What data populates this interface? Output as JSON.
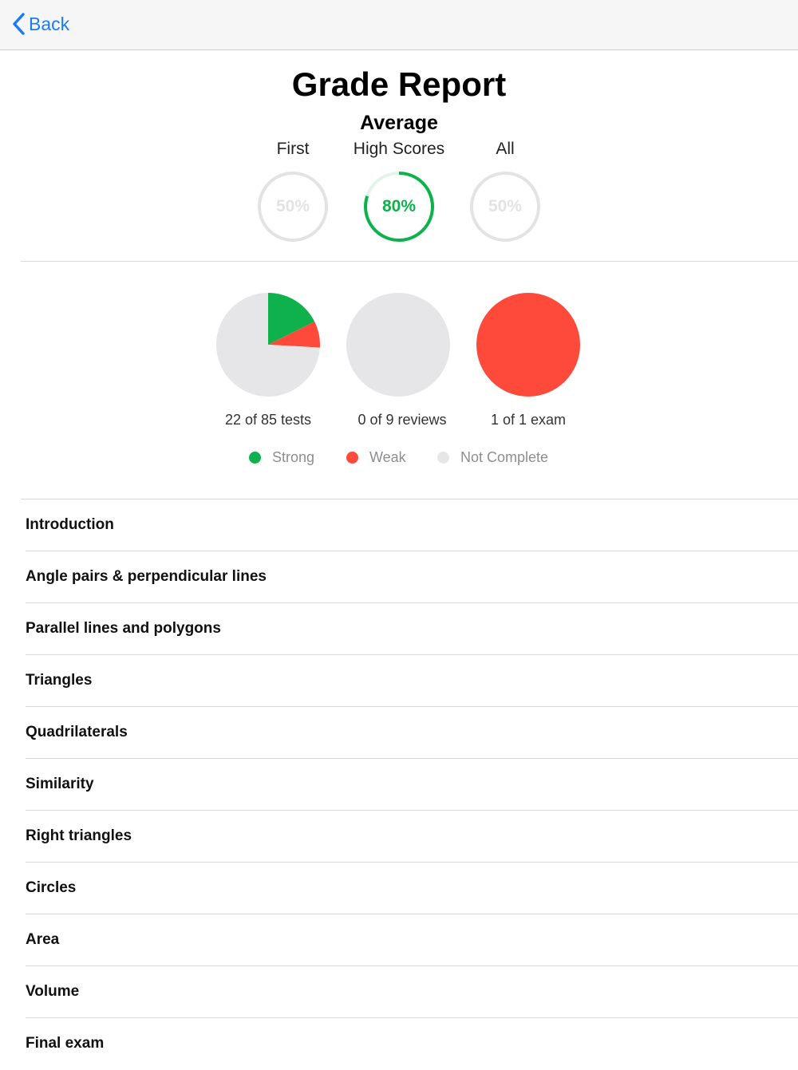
{
  "nav": {
    "back_label": "Back"
  },
  "header": {
    "title": "Grade Report",
    "subtitle": "Average"
  },
  "score_tabs": [
    {
      "label": "First",
      "value": "50%",
      "fraction": 0.5,
      "active": false
    },
    {
      "label": "High Scores",
      "value": "80%",
      "fraction": 0.8,
      "active": true
    },
    {
      "label": "All",
      "value": "50%",
      "fraction": 0.5,
      "active": false
    }
  ],
  "colors": {
    "accent": "#1a7cf5",
    "strong": "#0fb14d",
    "weak": "#fd4a3b",
    "not_complete": "#e6e6e8",
    "inactive_text": "#e3e3e5"
  },
  "chart_data": {
    "type": "pie",
    "charts": [
      {
        "caption": "22 of 85 tests",
        "strong": 15,
        "weak": 7,
        "not_complete": 63
      },
      {
        "caption": "0 of 9 reviews",
        "strong": 0,
        "weak": 0,
        "not_complete": 9
      },
      {
        "caption": "1 of 1 exam",
        "strong": 0,
        "weak": 1,
        "not_complete": 0
      }
    ],
    "legend": [
      "Strong",
      "Weak",
      "Not Complete"
    ]
  },
  "legend": {
    "strong": "Strong",
    "weak": "Weak",
    "not_complete": "Not Complete"
  },
  "units": [
    "Introduction",
    "Angle pairs & perpendicular lines",
    "Parallel lines and polygons",
    "Triangles",
    "Quadrilaterals",
    "Similarity",
    "Right triangles",
    "Circles",
    "Area",
    "Volume",
    "Final exam"
  ]
}
